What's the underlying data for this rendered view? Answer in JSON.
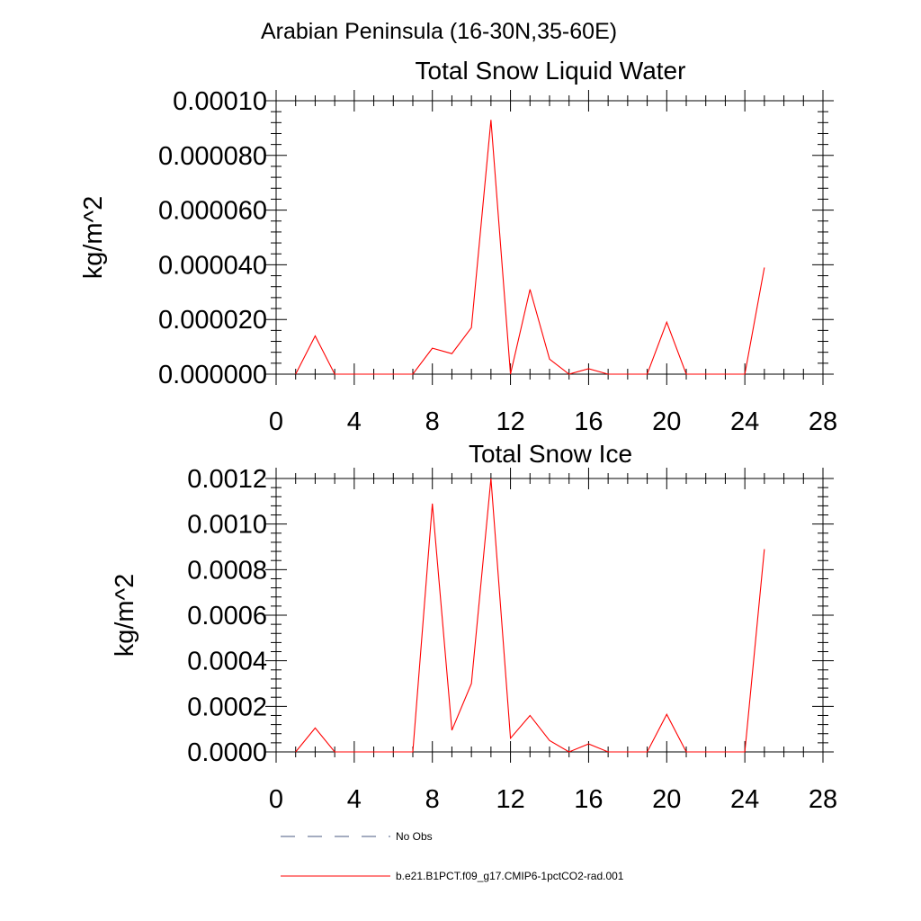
{
  "page_title": "Arabian Peninsula (16-30N,35-60E)",
  "chart_data": [
    {
      "type": "line",
      "title": "Total Snow Liquid Water",
      "ylabel": "kg/m^2",
      "xlim": [
        0,
        28
      ],
      "ylim": [
        0,
        0.0001
      ],
      "x_ticks": [
        "0",
        "4",
        "8",
        "12",
        "16",
        "20",
        "24",
        "28"
      ],
      "y_ticks": [
        "0.000000",
        "0.000020",
        "0.000040",
        "0.000060",
        "0.000080",
        "0.00010"
      ],
      "series": [
        {
          "color": "#ff0000",
          "x": [
            1,
            2,
            3,
            4,
            5,
            6,
            7,
            8,
            9,
            10,
            11,
            12,
            13,
            14,
            15,
            16,
            17,
            18,
            19,
            20,
            21,
            22,
            23,
            24,
            25
          ],
          "values": [
            0.0,
            1.4e-05,
            0.0,
            0.0,
            0.0,
            0.0,
            0.0,
            9.5e-06,
            7.5e-06,
            1.7e-05,
            9.3e-05,
            0.0,
            3.1e-05,
            5.5e-06,
            0.0,
            2e-06,
            0.0,
            0.0,
            0.0,
            1.9e-05,
            0.0,
            0.0,
            0.0,
            0.0,
            3.9e-05
          ]
        }
      ],
      "grid": false
    },
    {
      "type": "line",
      "title": "Total Snow Ice",
      "ylabel": "kg/m^2",
      "xlim": [
        0,
        28
      ],
      "ylim": [
        0,
        0.0012
      ],
      "x_ticks": [
        "0",
        "4",
        "8",
        "12",
        "16",
        "20",
        "24",
        "28"
      ],
      "y_ticks": [
        "0.0000",
        "0.0002",
        "0.0004",
        "0.0006",
        "0.0008",
        "0.0010",
        "0.0012"
      ],
      "series": [
        {
          "color": "#ff0000",
          "x": [
            1,
            2,
            3,
            4,
            5,
            6,
            7,
            8,
            9,
            10,
            11,
            12,
            13,
            14,
            15,
            16,
            17,
            18,
            19,
            20,
            21,
            22,
            23,
            24,
            25
          ],
          "values": [
            0.0,
            0.000105,
            0.0,
            0.0,
            0.0,
            0.0,
            0.0,
            0.00109,
            9.5e-05,
            0.0003,
            0.0012,
            6e-05,
            0.00016,
            5e-05,
            0.0,
            3.5e-05,
            0.0,
            0.0,
            0.0,
            0.000165,
            0.0,
            0.0,
            0.0,
            0.0,
            0.00089
          ]
        }
      ],
      "grid": false
    }
  ],
  "legend": {
    "placement": "bottom",
    "items": [
      {
        "label": "No Obs",
        "style": "dashed",
        "color": "#4a5a80"
      },
      {
        "label": "b.e21.B1PCT.f09_g17.CMIP6-1pctCO2-rad.001",
        "style": "solid",
        "color": "#ff0000"
      }
    ]
  }
}
